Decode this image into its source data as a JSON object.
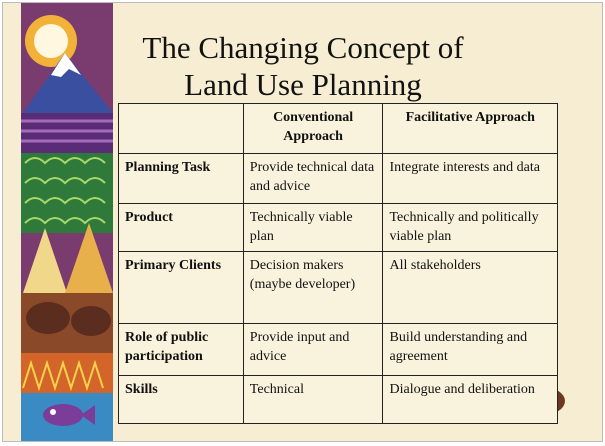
{
  "title": [
    "The Changing Concept of",
    "Land Use Planning"
  ],
  "table": {
    "header": [
      "Conventional Approach",
      "Facilitative Approach"
    ],
    "rows": [
      [
        "Planning Task",
        "Provide technical data and advice",
        "Integrate interests and data"
      ],
      [
        "Product",
        "Technically viable plan",
        "Technically and politically viable plan"
      ],
      [
        "Primary Clients",
        "Decision makers (maybe developer)",
        "All stakeholders"
      ],
      [
        "Role of public participation",
        "Provide input and advice",
        "Build understanding and agreement"
      ],
      [
        "Skills",
        "Technical",
        "Dialogue and deliberation"
      ]
    ]
  }
}
